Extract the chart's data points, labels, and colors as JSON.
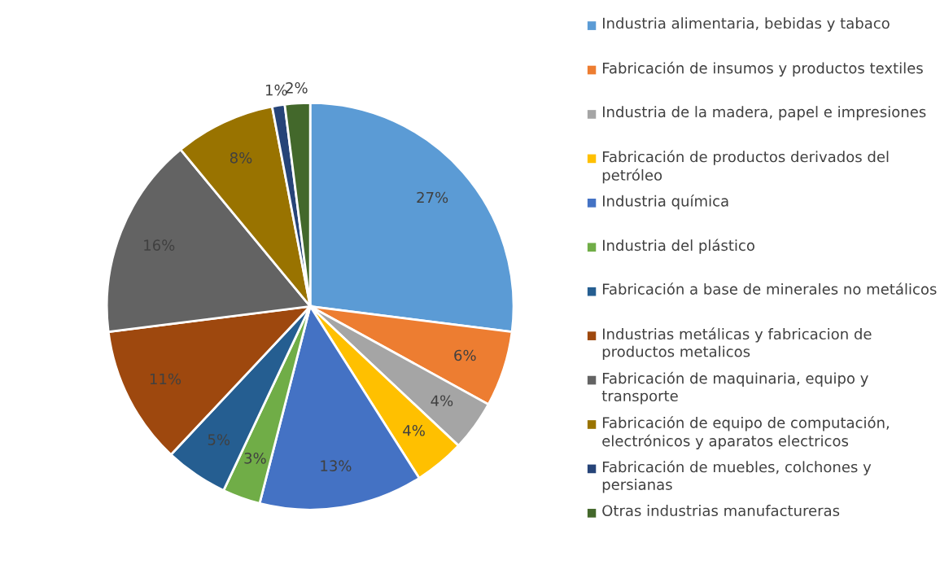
{
  "chart_data": {
    "type": "pie",
    "categories": [
      "Industria alimentaria, bebidas y tabaco",
      "Fabricación de insumos y productos textiles",
      "Industria de la madera, papel e impresiones",
      "Fabricación de productos derivados del petróleo",
      "Industria química",
      "Industria del plástico",
      "Fabricación a base de minerales no metálicos",
      "Industrias metálicas y fabricacion de productos metalicos",
      "Fabricación de maquinaria, equipo y transporte",
      "Fabricación de equipo de computación, electrónicos y aparatos electricos",
      "Fabricación de muebles, colchones y persianas",
      "Otras industrias manufactureras"
    ],
    "values": [
      27,
      6,
      4,
      4,
      13,
      3,
      5,
      11,
      16,
      8,
      1,
      2
    ],
    "value_labels": [
      "27%",
      "6%",
      "4%",
      "4%",
      "13%",
      "3%",
      "5%",
      "11%",
      "16%",
      "8%",
      "1%",
      "2%"
    ],
    "colors": [
      "#5b9bd5",
      "#ed7d31",
      "#a5a5a5",
      "#ffc000",
      "#4472c4",
      "#70ad47",
      "#255e91",
      "#9e480e",
      "#636363",
      "#997300",
      "#264478",
      "#43682b"
    ],
    "legend": "right"
  }
}
